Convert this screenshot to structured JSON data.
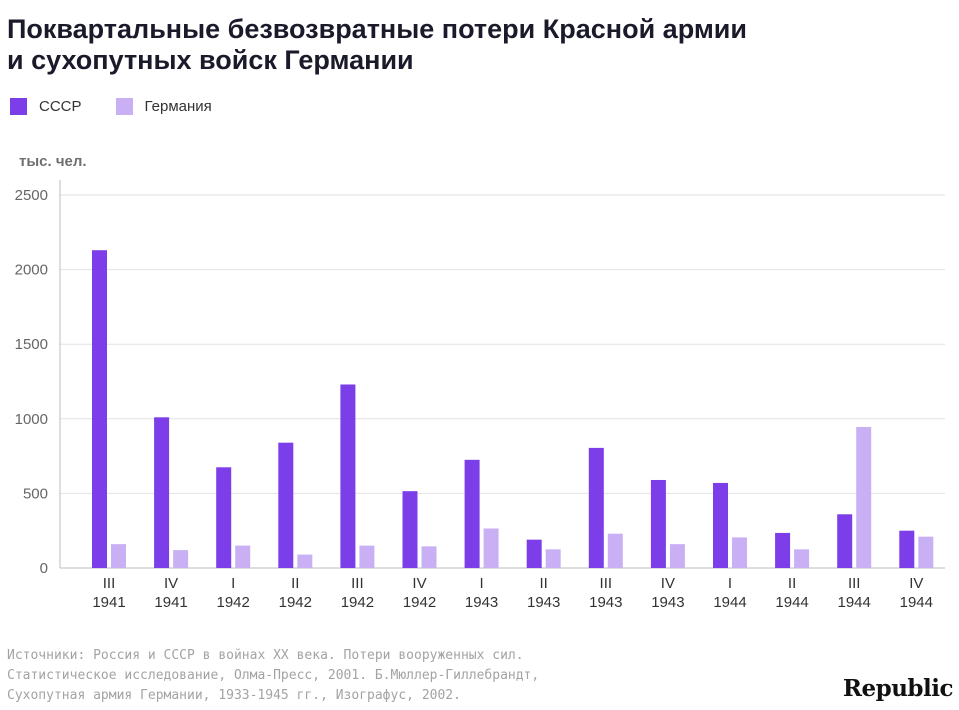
{
  "title_line1": "Поквартальные безвозвратные потери Красной армии",
  "title_line2": "и сухопутных войск Германии",
  "legend": [
    {
      "label": "СССР",
      "color": "#7b3ee8"
    },
    {
      "label": "Германия",
      "color": "#c9b0f5"
    }
  ],
  "unit_label": "тыс. чел.",
  "source_lines": [
    "Источники: Россия и СССР в войнах XX века. Потери вооруженных сил.",
    "Статистическое исследование, Олма-Пресс, 2001. Б.Мюллер-Гиллебрандт,",
    "Сухопутная армия Германии, 1933-1945 гг., Изографус, 2002."
  ],
  "brand": "Republic",
  "chart_data": {
    "type": "bar",
    "title": "Поквартальные безвозвратные потери Красной армии и сухопутных войск Германии",
    "ylabel": "тыс. чел.",
    "ylim": [
      0,
      2500
    ],
    "yticks": [
      0,
      500,
      1000,
      1500,
      2000,
      2500
    ],
    "grid": true,
    "legend_position": "top-left",
    "categories": [
      [
        "III",
        "1941"
      ],
      [
        "IV",
        "1941"
      ],
      [
        "I",
        "1942"
      ],
      [
        "II",
        "1942"
      ],
      [
        "III",
        "1942"
      ],
      [
        "IV",
        "1942"
      ],
      [
        "I",
        "1943"
      ],
      [
        "II",
        "1943"
      ],
      [
        "III",
        "1943"
      ],
      [
        "IV",
        "1943"
      ],
      [
        "I",
        "1944"
      ],
      [
        "II",
        "1944"
      ],
      [
        "III",
        "1944"
      ],
      [
        "IV",
        "1944"
      ]
    ],
    "series": [
      {
        "name": "СССР",
        "color": "#7b3ee8",
        "values": [
          2130,
          1010,
          675,
          840,
          1230,
          515,
          725,
          190,
          805,
          590,
          570,
          235,
          360,
          250
        ]
      },
      {
        "name": "Германия",
        "color": "#c9b0f5",
        "values": [
          160,
          120,
          150,
          90,
          150,
          145,
          265,
          125,
          230,
          160,
          205,
          125,
          945,
          210
        ]
      }
    ]
  }
}
